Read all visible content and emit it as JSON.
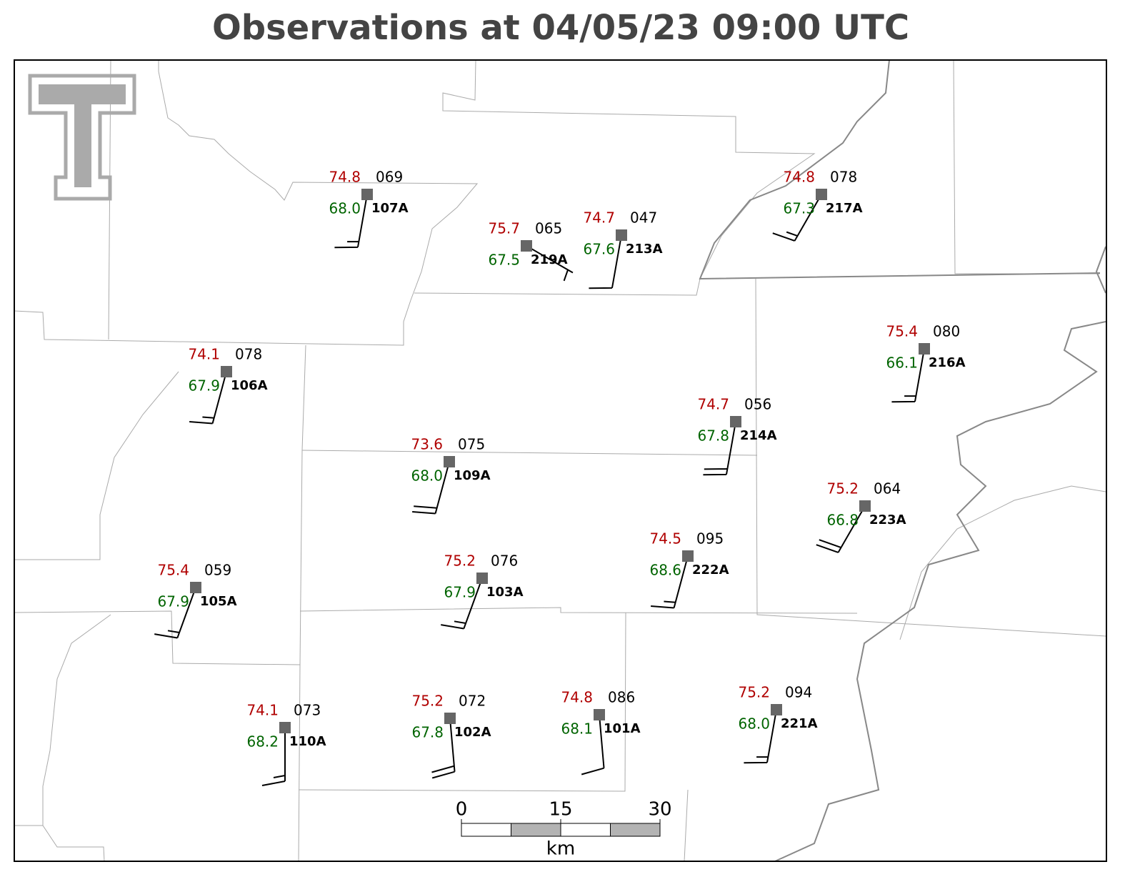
{
  "title": "Observations at 04/05/23 09:00 UTC",
  "stations": [
    {
      "id": "107A",
      "temperature": "74.8",
      "dewpoint": "68.0",
      "pressure": "069",
      "wind": {
        "direction": 190,
        "speed": 15
      }
    },
    {
      "id": "219A",
      "temperature": "75.7",
      "dewpoint": "67.5",
      "pressure": "065",
      "wind": {
        "direction": 120,
        "speed": 5
      }
    },
    {
      "id": "213A",
      "temperature": "74.7",
      "dewpoint": "67.6",
      "pressure": "047",
      "wind": {
        "direction": 190,
        "speed": 10
      }
    },
    {
      "id": "217A",
      "temperature": "74.8",
      "dewpoint": "67.3",
      "pressure": "078",
      "wind": {
        "direction": 210,
        "speed": 15
      }
    },
    {
      "id": "216A",
      "temperature": "75.4",
      "dewpoint": "66.1",
      "pressure": "080",
      "wind": {
        "direction": 190,
        "speed": 15
      }
    },
    {
      "id": "106A",
      "temperature": "74.1",
      "dewpoint": "67.9",
      "pressure": "078",
      "wind": {
        "direction": 195,
        "speed": 15
      }
    },
    {
      "id": "214A",
      "temperature": "74.7",
      "dewpoint": "67.8",
      "pressure": "056",
      "wind": {
        "direction": 190,
        "speed": 20
      }
    },
    {
      "id": "109A",
      "temperature": "73.6",
      "dewpoint": "68.0",
      "pressure": "075",
      "wind": {
        "direction": 195,
        "speed": 20
      }
    },
    {
      "id": "223A",
      "temperature": "75.2",
      "dewpoint": "66.8",
      "pressure": "064",
      "wind": {
        "direction": 210,
        "speed": 20
      }
    },
    {
      "id": "105A",
      "temperature": "75.4",
      "dewpoint": "67.9",
      "pressure": "059",
      "wind": {
        "direction": 200,
        "speed": 15
      }
    },
    {
      "id": "103A",
      "temperature": "75.2",
      "dewpoint": "67.9",
      "pressure": "076",
      "wind": {
        "direction": 200,
        "speed": 15
      }
    },
    {
      "id": "222A",
      "temperature": "74.5",
      "dewpoint": "68.6",
      "pressure": "095",
      "wind": {
        "direction": 195,
        "speed": 15
      }
    },
    {
      "id": "110A",
      "temperature": "74.1",
      "dewpoint": "68.2",
      "pressure": "073",
      "wind": {
        "direction": 180,
        "speed": 15
      }
    },
    {
      "id": "102A",
      "temperature": "75.2",
      "dewpoint": "67.8",
      "pressure": "072",
      "wind": {
        "direction": 175,
        "speed": 20
      }
    },
    {
      "id": "101A",
      "temperature": "74.8",
      "dewpoint": "68.1",
      "pressure": "086",
      "wind": {
        "direction": 175,
        "speed": 10
      }
    },
    {
      "id": "221A",
      "temperature": "75.2",
      "dewpoint": "68.0",
      "pressure": "094",
      "wind": {
        "direction": 190,
        "speed": 15
      }
    }
  ],
  "scale_bar": {
    "ticks": [
      0,
      15,
      30
    ],
    "unit": "km"
  }
}
